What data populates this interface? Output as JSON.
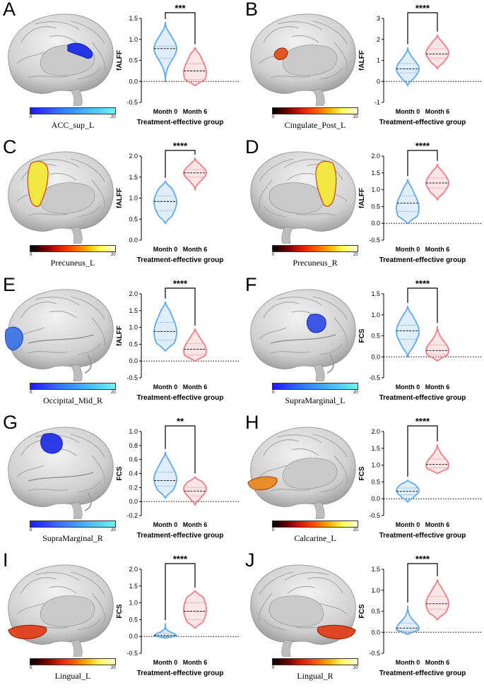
{
  "colors": {
    "blue": "#62a9ec",
    "red": "#ee7f85"
  },
  "panels": [
    {
      "letter": "A",
      "region": "ACC_sup_L",
      "cmap": "blue",
      "cbar_min": "0",
      "cbar_max": "20",
      "brain": {
        "view": "medial-left",
        "blob": "acc"
      },
      "chart_data": {
        "type": "violin",
        "title": "",
        "ylabel": "fALFF",
        "xlabel": "Treatment-effective group",
        "categories": [
          "Month 0",
          "Month 6"
        ],
        "ylim": [
          -0.5,
          1.5
        ],
        "yticks": [
          "-0.5",
          "0.0",
          "0.5",
          "1.0",
          "1.5"
        ],
        "yticks_v": [
          -0.5,
          0,
          0.5,
          1.0,
          1.5
        ],
        "sig": "***",
        "series": [
          {
            "name": "Month 0",
            "min": 0.0,
            "q1": 0.55,
            "median": 0.78,
            "q3": 0.84,
            "max": 1.4,
            "mode": 0.78
          },
          {
            "name": "Month 6",
            "min": -0.1,
            "q1": 0.05,
            "median": 0.25,
            "q3": 0.42,
            "max": 0.8,
            "mode": 0.2
          }
        ]
      }
    },
    {
      "letter": "B",
      "region": "Cingulate_Post_L",
      "cmap": "hot",
      "cbar_min": "0",
      "cbar_max": "20",
      "brain": {
        "view": "medial-left",
        "blob": "pcc"
      },
      "chart_data": {
        "type": "violin",
        "title": "",
        "ylabel": "fALFF",
        "xlabel": "Treatment-effective group",
        "categories": [
          "Month 0",
          "Month 6"
        ],
        "ylim": [
          -1,
          3
        ],
        "yticks": [
          "-1",
          "0",
          "1",
          "2",
          "3"
        ],
        "yticks_v": [
          -1,
          0,
          1,
          2,
          3
        ],
        "sig": "****",
        "series": [
          {
            "name": "Month 0",
            "min": -0.2,
            "q1": 0.4,
            "median": 0.6,
            "q3": 0.85,
            "max": 1.6,
            "mode": 0.6
          },
          {
            "name": "Month 6",
            "min": 0.6,
            "q1": 1.1,
            "median": 1.3,
            "q3": 1.55,
            "max": 2.2,
            "mode": 1.35
          }
        ]
      }
    },
    {
      "letter": "C",
      "region": "Precuneus_L",
      "cmap": "hot",
      "cbar_min": "0",
      "cbar_max": "20",
      "brain": {
        "view": "medial-left",
        "blob": "precuneus"
      },
      "chart_data": {
        "type": "violin",
        "title": "",
        "ylabel": "fALFF",
        "xlabel": "Treatment-effective group",
        "categories": [
          "Month 0",
          "Month 6"
        ],
        "ylim": [
          0.0,
          2.0
        ],
        "yticks": [
          "0.0",
          "0.5",
          "1.0",
          "1.5",
          "2.0"
        ],
        "yticks_v": [
          0,
          0.5,
          1.0,
          1.5,
          2.0
        ],
        "sig": "****",
        "series": [
          {
            "name": "Month 0",
            "min": 0.4,
            "q1": 0.7,
            "median": 0.92,
            "q3": 1.05,
            "max": 1.4,
            "mode": 0.9
          },
          {
            "name": "Month 6",
            "min": 1.2,
            "q1": 1.5,
            "median": 1.6,
            "q3": 1.68,
            "max": 1.95,
            "mode": 1.6
          }
        ]
      }
    },
    {
      "letter": "D",
      "region": "Precuneus_R",
      "cmap": "hot",
      "cbar_min": "0",
      "cbar_max": "20",
      "brain": {
        "view": "medial-right",
        "blob": "precuneus"
      },
      "chart_data": {
        "type": "violin",
        "title": "",
        "ylabel": "fALFF",
        "xlabel": "Treatment-effective group",
        "categories": [
          "Month 0",
          "Month 6"
        ],
        "ylim": [
          -0.5,
          2.0
        ],
        "yticks": [
          "-0.5",
          "0.0",
          "0.5",
          "1.0",
          "1.5",
          "2.0"
        ],
        "yticks_v": [
          -0.5,
          0,
          0.5,
          1.0,
          1.5,
          2.0
        ],
        "sig": "****",
        "series": [
          {
            "name": "Month 0",
            "min": 0.0,
            "q1": 0.35,
            "median": 0.6,
            "q3": 0.82,
            "max": 1.3,
            "mode": 0.45
          },
          {
            "name": "Month 6",
            "min": 0.7,
            "q1": 1.05,
            "median": 1.2,
            "q3": 1.35,
            "max": 1.75,
            "mode": 1.2
          }
        ]
      }
    },
    {
      "letter": "E",
      "region": "Occipital_Mid_R",
      "cmap": "blue",
      "cbar_min": "0",
      "cbar_max": "20",
      "brain": {
        "view": "lateral-left",
        "blob": "occipital"
      },
      "chart_data": {
        "type": "violin",
        "title": "",
        "ylabel": "fALFF",
        "xlabel": "Treatment-effective group",
        "categories": [
          "Month 0",
          "Month 6"
        ],
        "ylim": [
          -0.5,
          2.0
        ],
        "yticks": [
          "-0.5",
          "0.0",
          "0.5",
          "1.0",
          "1.5",
          "2.0"
        ],
        "yticks_v": [
          -0.5,
          0,
          0.5,
          1.0,
          1.5,
          2.0
        ],
        "sig": "****",
        "series": [
          {
            "name": "Month 0",
            "min": 0.3,
            "q1": 0.62,
            "median": 0.88,
            "q3": 1.15,
            "max": 1.75,
            "mode": 0.85
          },
          {
            "name": "Month 6",
            "min": 0.0,
            "q1": 0.18,
            "median": 0.35,
            "q3": 0.52,
            "max": 0.95,
            "mode": 0.3
          }
        ]
      }
    },
    {
      "letter": "F",
      "region": "SupraMarginal_L",
      "cmap": "blue",
      "cbar_min": "0",
      "cbar_max": "20",
      "brain": {
        "view": "lateral-left",
        "blob": "supramarginal"
      },
      "chart_data": {
        "type": "violin",
        "title": "",
        "ylabel": "FCS",
        "xlabel": "Treatment-effective group",
        "categories": [
          "Month 0",
          "Month 6"
        ],
        "ylim": [
          -0.5,
          1.5
        ],
        "yticks": [
          "-0.5",
          "0.0",
          "0.5",
          "1.0",
          "1.5"
        ],
        "yticks_v": [
          -0.5,
          0,
          0.5,
          1.0,
          1.5
        ],
        "sig": "****",
        "series": [
          {
            "name": "Month 0",
            "min": 0.0,
            "q1": 0.42,
            "median": 0.62,
            "q3": 0.75,
            "max": 1.2,
            "mode": 0.6
          },
          {
            "name": "Month 6",
            "min": -0.1,
            "q1": 0.05,
            "median": 0.15,
            "q3": 0.28,
            "max": 0.72,
            "mode": 0.15
          }
        ]
      }
    },
    {
      "letter": "G",
      "region": "SupraMarginal_R",
      "cmap": "blue",
      "cbar_min": "0",
      "cbar_max": "20",
      "brain": {
        "view": "lateral-left",
        "blob": "supramarginal-high"
      },
      "chart_data": {
        "type": "violin",
        "title": "",
        "ylabel": "FCS",
        "xlabel": "Treatment-effective group",
        "categories": [
          "Month 0",
          "Month 6"
        ],
        "ylim": [
          -0.2,
          1.0
        ],
        "yticks": [
          "-0.2",
          "0.0",
          "0.2",
          "0.4",
          "0.6",
          "0.8",
          "1.0"
        ],
        "yticks_v": [
          -0.2,
          0,
          0.2,
          0.4,
          0.6,
          0.8,
          1.0
        ],
        "sig": "**",
        "series": [
          {
            "name": "Month 0",
            "min": 0.05,
            "q1": 0.22,
            "median": 0.3,
            "q3": 0.42,
            "max": 0.7,
            "mode": 0.32
          },
          {
            "name": "Month 6",
            "min": -0.05,
            "q1": 0.08,
            "median": 0.15,
            "q3": 0.2,
            "max": 0.35,
            "mode": 0.18
          }
        ]
      }
    },
    {
      "letter": "H",
      "region": "Calcarine_L",
      "cmap": "hot",
      "cbar_min": "0",
      "cbar_max": "20",
      "brain": {
        "view": "medial-left",
        "blob": "calcarine"
      },
      "chart_data": {
        "type": "violin",
        "title": "",
        "ylabel": "FCS",
        "xlabel": "Treatment-effective group",
        "categories": [
          "Month 0",
          "Month 6"
        ],
        "ylim": [
          -0.5,
          2.0
        ],
        "yticks": [
          "-0.5",
          "0.0",
          "0.5",
          "1.0",
          "1.5",
          "2.0"
        ],
        "yticks_v": [
          -0.5,
          0,
          0.5,
          1.0,
          1.5,
          2.0
        ],
        "sig": "****",
        "series": [
          {
            "name": "Month 0",
            "min": -0.1,
            "q1": 0.12,
            "median": 0.22,
            "q3": 0.32,
            "max": 0.55,
            "mode": 0.25
          },
          {
            "name": "Month 6",
            "min": 0.75,
            "q1": 0.92,
            "median": 1.02,
            "q3": 1.18,
            "max": 1.6,
            "mode": 1.0
          }
        ]
      }
    },
    {
      "letter": "I",
      "region": "Lingual_L",
      "cmap": "hot",
      "cbar_min": "0",
      "cbar_max": "20",
      "brain": {
        "view": "medial-left",
        "blob": "lingual"
      },
      "chart_data": {
        "type": "violin",
        "title": "",
        "ylabel": "FCS",
        "xlabel": "Treatment-effective group",
        "categories": [
          "Month 0",
          "Month 6"
        ],
        "ylim": [
          -0.5,
          2.0
        ],
        "yticks": [
          "-0.5",
          "0.0",
          "0.5",
          "1.0",
          "1.5",
          "2.0"
        ],
        "yticks_v": [
          -0.5,
          0,
          0.5,
          1.0,
          1.5,
          2.0
        ],
        "sig": "****",
        "series": [
          {
            "name": "Month 0",
            "min": -0.05,
            "q1": 0.0,
            "median": 0.03,
            "q3": 0.1,
            "max": 0.38,
            "mode": 0.02
          },
          {
            "name": "Month 6",
            "min": 0.25,
            "q1": 0.5,
            "median": 0.75,
            "q3": 1.0,
            "max": 1.35,
            "mode": 0.8
          }
        ]
      }
    },
    {
      "letter": "J",
      "region": "Lingual_R",
      "cmap": "hot",
      "cbar_min": "0",
      "cbar_max": "20",
      "brain": {
        "view": "medial-right",
        "blob": "lingual"
      },
      "chart_data": {
        "type": "violin",
        "title": "",
        "ylabel": "FCS",
        "xlabel": "Treatment-effective group",
        "categories": [
          "Month 0",
          "Month 6"
        ],
        "ylim": [
          -0.5,
          1.5
        ],
        "yticks": [
          "-0.5",
          "0.0",
          "0.5",
          "1.0",
          "1.5"
        ],
        "yticks_v": [
          -0.5,
          0,
          0.5,
          1.0,
          1.5
        ],
        "sig": "****",
        "series": [
          {
            "name": "Month 0",
            "min": -0.05,
            "q1": 0.03,
            "median": 0.1,
            "q3": 0.22,
            "max": 0.62,
            "mode": 0.08
          },
          {
            "name": "Month 6",
            "min": 0.3,
            "q1": 0.55,
            "median": 0.68,
            "q3": 0.85,
            "max": 1.25,
            "mode": 0.68
          }
        ]
      }
    }
  ]
}
